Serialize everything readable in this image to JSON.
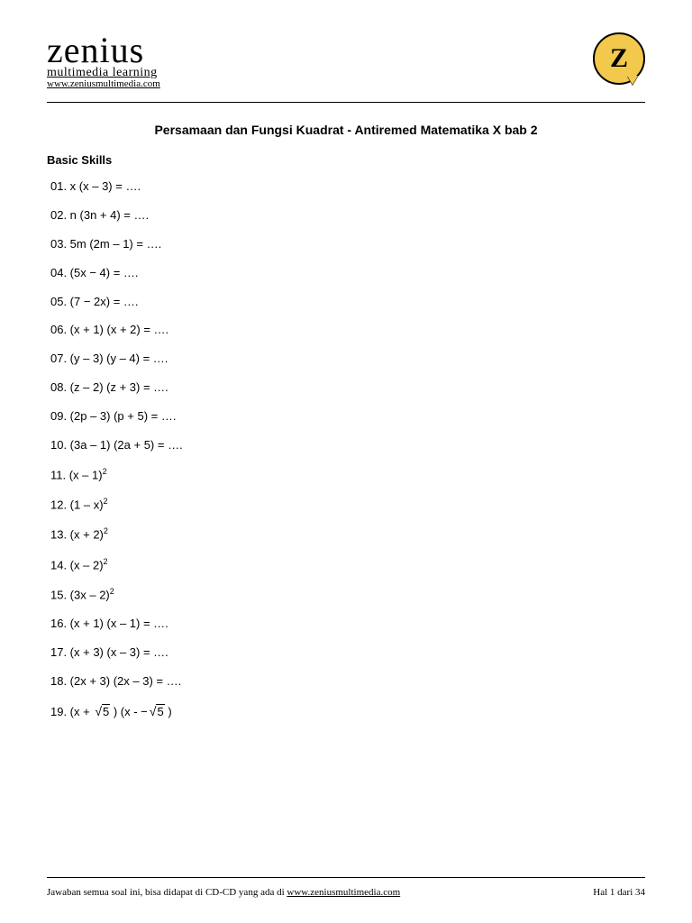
{
  "header": {
    "logo_main": "zenius",
    "logo_sub": "multimedia learning",
    "logo_link": "www.zeniusmultimedia.com",
    "icon_letter": "Z"
  },
  "title": "Persamaan dan Fungsi Kuadrat - Antiremed Matematika X bab 2",
  "section": "Basic Skills",
  "problems": [
    {
      "num": "01.",
      "expr": "x (x – 3) = ….",
      "type": "plain"
    },
    {
      "num": "02.",
      "expr": "n (3n + 4) = ….",
      "type": "plain"
    },
    {
      "num": "03.",
      "expr": "5m (2m – 1) = ….",
      "type": "plain"
    },
    {
      "num": "04.",
      "expr": "  (5x − 4)  = ….",
      "type": "italic"
    },
    {
      "num": "05.",
      "expr": "  (7 − 2x)  = ….",
      "type": "italic"
    },
    {
      "num": "06.",
      "expr": "(x + 1) (x + 2) = ….",
      "type": "plain"
    },
    {
      "num": "07.",
      "expr": "(y – 3) (y – 4) = ….",
      "type": "plain"
    },
    {
      "num": "08.",
      "expr": "(z – 2) (z + 3) = ….",
      "type": "plain"
    },
    {
      "num": "09.",
      "expr": "(2p – 3) (p + 5) = ….",
      "type": "plain"
    },
    {
      "num": "10.",
      "expr": "(3a – 1) (2a + 5) = ….",
      "type": "plain"
    },
    {
      "num": "11.",
      "expr": "(x – 1)",
      "type": "squared"
    },
    {
      "num": "12.",
      "expr": "(1 – x)",
      "type": "squared"
    },
    {
      "num": "13.",
      "expr": "(x + 2)",
      "type": "squared"
    },
    {
      "num": "14.",
      "expr": "(x – 2)",
      "type": "squared"
    },
    {
      "num": "15.",
      "expr": "(3x – 2)",
      "type": "squared"
    },
    {
      "num": "16.",
      "expr": "(x + 1) (x – 1) = ….",
      "type": "plain"
    },
    {
      "num": "17.",
      "expr": "(x + 3) (x – 3) = ….",
      "type": "plain"
    },
    {
      "num": "18.",
      "expr": "(2x + 3) (2x – 3) = ….",
      "type": "plain"
    },
    {
      "num": "19.",
      "type": "sqrt5"
    }
  ],
  "footer": {
    "left_pre": "Jawaban semua soal ini, bisa didapat di CD-CD yang ada di ",
    "left_link": "www.zeniusmultimedia.com",
    "right": "Hal 1 dari 34"
  },
  "colors": {
    "text": "#000000",
    "background": "#ffffff",
    "icon_fill": "#f2c94c",
    "rule": "#000000"
  }
}
